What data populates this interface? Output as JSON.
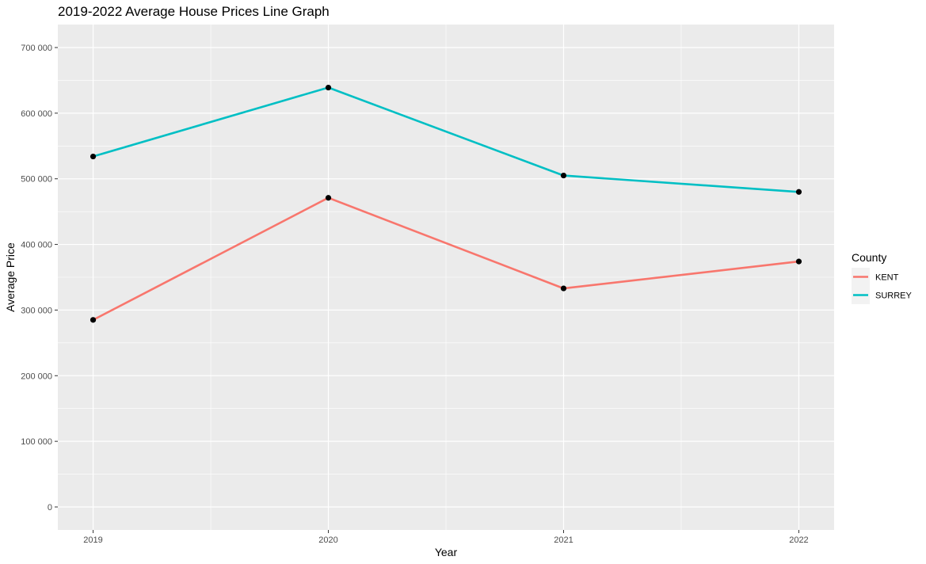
{
  "chart_data": {
    "type": "line",
    "title": "2019-2022 Average House Prices Line Graph",
    "xlabel": "Year",
    "ylabel": "Average Price",
    "x": [
      2019,
      2020,
      2021,
      2022
    ],
    "x_tick_labels": [
      "2019",
      "2020",
      "2021",
      "2022"
    ],
    "xlim": [
      2018.85,
      2022.15
    ],
    "y_ticks": [
      0,
      100000,
      200000,
      300000,
      400000,
      500000,
      600000,
      700000
    ],
    "y_tick_labels": [
      "0",
      "100 000",
      "200 000",
      "300 000",
      "400 000",
      "500 000",
      "600 000",
      "700 000"
    ],
    "ylim": [
      -35000,
      735000
    ],
    "grid": true,
    "legend_title": "County",
    "legend_position": "right",
    "series": [
      {
        "name": "KENT",
        "color": "#F8766D",
        "values": [
          285000,
          471000,
          333000,
          374000
        ]
      },
      {
        "name": "SURREY",
        "color": "#00BFC4",
        "values": [
          534000,
          639000,
          505000,
          480000
        ]
      }
    ],
    "colors": {
      "panel_background": "#EBEBEB",
      "grid_major": "#FFFFFF",
      "point": "#000000"
    }
  }
}
